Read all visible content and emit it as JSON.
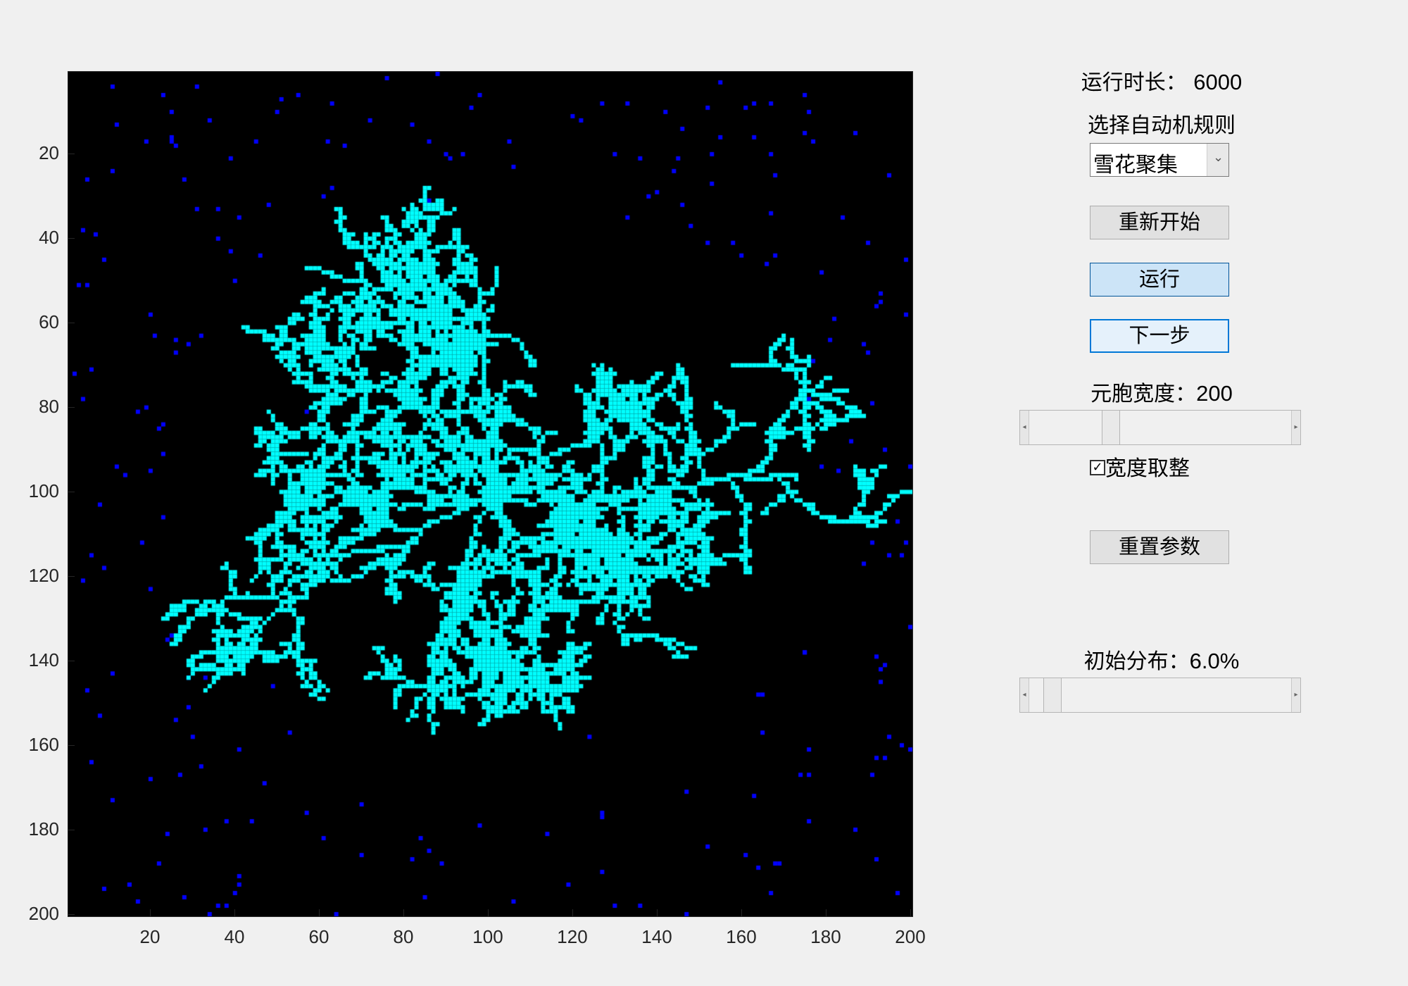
{
  "plot": {
    "x_ticks": [
      "20",
      "40",
      "60",
      "80",
      "100",
      "120",
      "140",
      "160",
      "180",
      "200"
    ],
    "y_ticks": [
      "20",
      "40",
      "60",
      "80",
      "100",
      "120",
      "140",
      "160",
      "180",
      "200"
    ],
    "grid_size": 200,
    "background_color": "#000000",
    "crystal_color": "#00ffff",
    "particle_color": "#0000ff"
  },
  "controls": {
    "run_time_label": "运行时长：",
    "run_time_value": "6000",
    "rule_label": "选择自动机规则",
    "rule_select_value": "雪花聚集",
    "restart_label": "重新开始",
    "run_label": "运行",
    "step_label": "下一步",
    "cell_width_label": "元胞宽度：",
    "cell_width_value": "200",
    "cell_width_fraction": 0.3,
    "round_width_label": "宽度取整",
    "round_width_checked": true,
    "reset_params_label": "重置参数",
    "init_dist_label": "初始分布：",
    "init_dist_value": "6.0%",
    "init_dist_fraction": 0.06
  }
}
